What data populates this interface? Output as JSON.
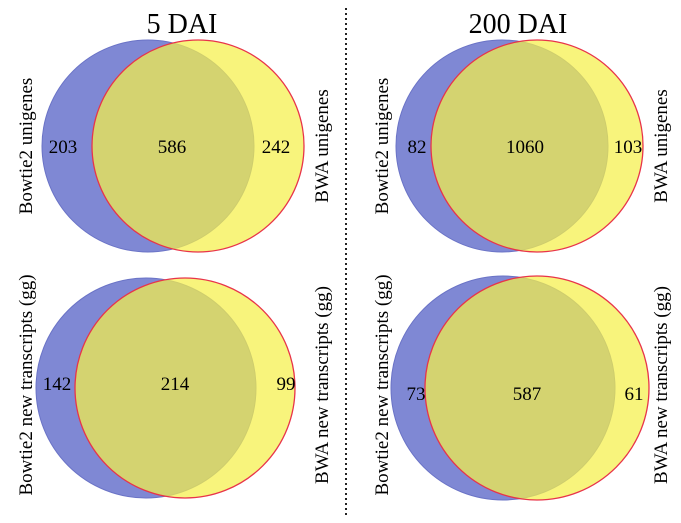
{
  "columns": [
    {
      "title": "5 DAI"
    },
    {
      "title": "200 DAI"
    }
  ],
  "panels": [
    {
      "left_label": "Bowtie2 unigenes",
      "right_label": "BWA unigenes",
      "left_only": "203",
      "overlap": "586",
      "right_only": "242"
    },
    {
      "left_label": "Bowtie2 unigenes",
      "right_label": "BWA unigenes",
      "left_only": "82",
      "overlap": "1060",
      "right_only": "103"
    },
    {
      "left_label": "Bowtie2 new transcripts (gg)",
      "right_label": "BWA new transcripts (gg)",
      "left_only": "142",
      "overlap": "214",
      "right_only": "99"
    },
    {
      "left_label": "Bowtie2 new transcripts (gg)",
      "right_label": "BWA new transcripts (gg)",
      "left_only": "73",
      "overlap": "587",
      "right_only": "61"
    }
  ],
  "colors": {
    "bowtie2": "#5b67c8",
    "bwa": "#f5f04a",
    "bwa_outline": "#e8344a",
    "overlap": "#a7b85f"
  }
}
